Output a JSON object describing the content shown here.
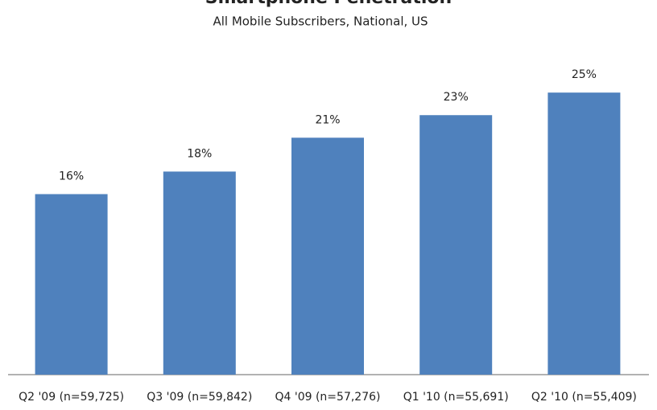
{
  "chart_data": {
    "type": "bar",
    "title": "Smartphone Penetration",
    "subtitle": "All Mobile Subscribers, National, US",
    "categories": [
      "Q2 '09 (n=59,725)",
      "Q3 '09 (n=59,842)",
      "Q4 '09 (n=57,276)",
      "Q1 '10 (n=55,691)",
      "Q2 '10 (n=55,409)"
    ],
    "values": [
      16,
      18,
      21,
      23,
      25
    ],
    "value_labels": [
      "16%",
      "18%",
      "21%",
      "23%",
      "25%"
    ],
    "color": "#4f81bd",
    "ylim": [
      0,
      30
    ]
  }
}
